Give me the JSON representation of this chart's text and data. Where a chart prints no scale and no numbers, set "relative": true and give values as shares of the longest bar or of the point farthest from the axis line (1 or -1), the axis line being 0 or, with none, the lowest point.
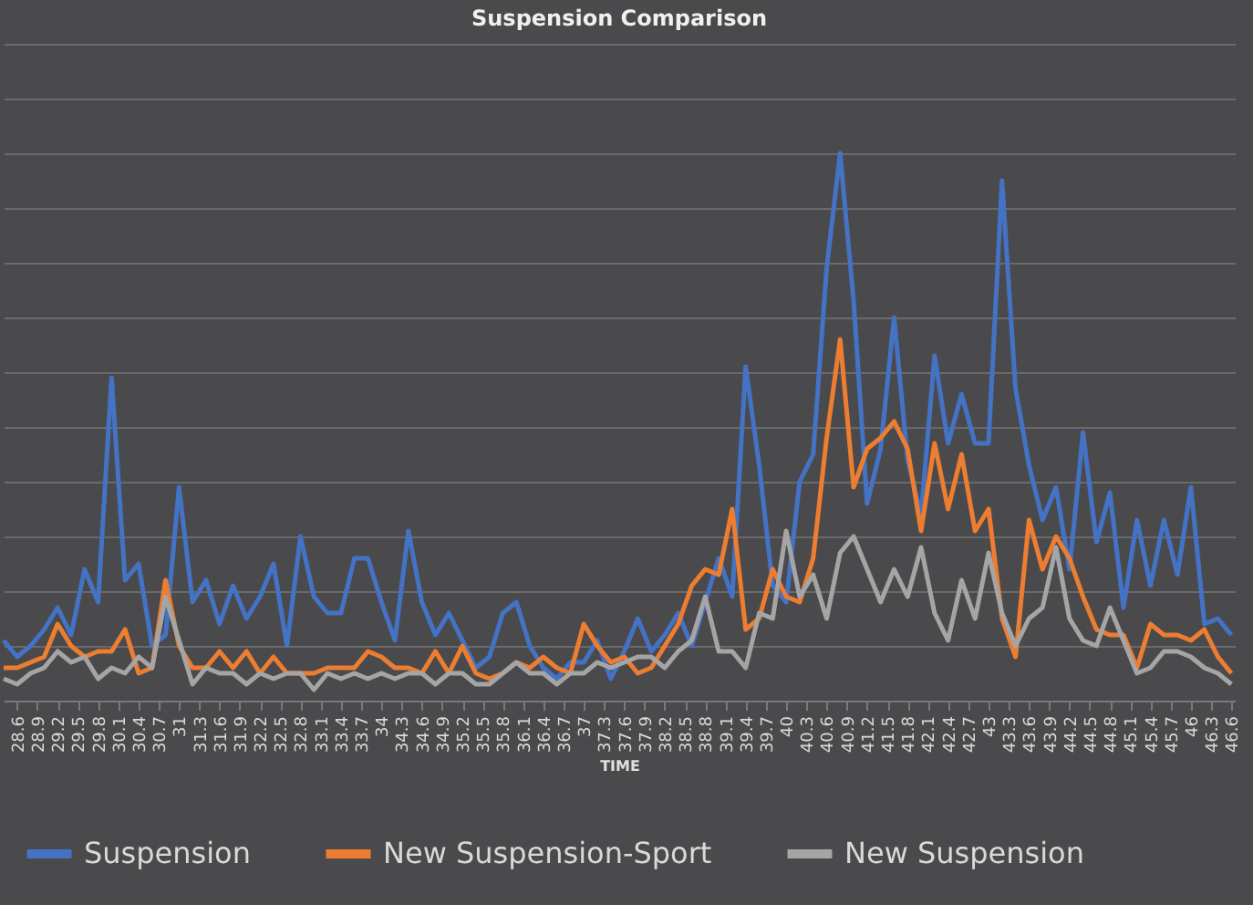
{
  "chart_data": {
    "type": "line",
    "title": "Suspension Comparison",
    "xlabel": "TIME",
    "relative": true,
    "grid": "y",
    "legend": "bottom",
    "line_style": "solid",
    "marker": "none",
    "xlim": [
      28.4,
      46.65
    ],
    "xticks": [
      28.6,
      28.9,
      29.2,
      29.5,
      29.8,
      30.1,
      30.4,
      30.7,
      31,
      31.3,
      31.6,
      31.9,
      32.2,
      32.5,
      32.8,
      33.1,
      33.4,
      33.7,
      34,
      34.3,
      34.6,
      34.9,
      35.2,
      35.5,
      35.8,
      36.1,
      36.4,
      36.7,
      37,
      37.3,
      37.6,
      37.9,
      38.2,
      38.5,
      38.8,
      39.1,
      39.4,
      39.7,
      40,
      40.3,
      40.6,
      40.9,
      41.2,
      41.5,
      41.8,
      42.1,
      42.4,
      42.7,
      43,
      43.3,
      43.6,
      43.9,
      44.2,
      44.5,
      44.8,
      45.1,
      45.4,
      45.7,
      46,
      46.3,
      46.6
    ],
    "x": [
      28.4,
      28.6,
      28.8,
      29.0,
      29.2,
      29.4,
      29.6,
      29.8,
      30.0,
      30.2,
      30.4,
      30.6,
      30.8,
      31.0,
      31.2,
      31.4,
      31.6,
      31.8,
      32.0,
      32.2,
      32.4,
      32.6,
      32.8,
      33.0,
      33.2,
      33.4,
      33.6,
      33.8,
      34.0,
      34.2,
      34.4,
      34.6,
      34.8,
      35.0,
      35.2,
      35.4,
      35.6,
      35.8,
      36.0,
      36.2,
      36.4,
      36.6,
      36.8,
      37.0,
      37.2,
      37.4,
      37.6,
      37.8,
      38.0,
      38.2,
      38.4,
      38.6,
      38.8,
      39.0,
      39.2,
      39.4,
      39.6,
      39.8,
      40.0,
      40.2,
      40.4,
      40.6,
      40.8,
      41.0,
      41.2,
      41.4,
      41.6,
      41.8,
      42.0,
      42.2,
      42.4,
      42.6,
      42.8,
      43.0,
      43.2,
      43.4,
      43.6,
      43.8,
      44.0,
      44.2,
      44.4,
      44.6,
      44.8,
      45.0,
      45.2,
      45.4,
      45.6,
      45.8,
      46.0,
      46.2,
      46.4,
      46.6
    ],
    "series": [
      {
        "name": "Suspension",
        "color": "#4472c4",
        "values": [
          0.11,
          0.08,
          0.1,
          0.13,
          0.17,
          0.12,
          0.24,
          0.18,
          0.59,
          0.22,
          0.25,
          0.1,
          0.12,
          0.39,
          0.18,
          0.22,
          0.14,
          0.21,
          0.15,
          0.19,
          0.25,
          0.1,
          0.3,
          0.19,
          0.16,
          0.16,
          0.26,
          0.26,
          0.18,
          0.11,
          0.31,
          0.18,
          0.12,
          0.16,
          0.11,
          0.06,
          0.08,
          0.16,
          0.18,
          0.1,
          0.06,
          0.04,
          0.07,
          0.07,
          0.11,
          0.04,
          0.09,
          0.15,
          0.09,
          0.12,
          0.16,
          0.1,
          0.18,
          0.26,
          0.19,
          0.61,
          0.43,
          0.21,
          0.18,
          0.4,
          0.45,
          0.79,
          1,
          0.73,
          0.36,
          0.46,
          0.7,
          0.44,
          0.34,
          0.63,
          0.47,
          0.56,
          0.47,
          0.47,
          0.95,
          0.57,
          0.43,
          0.33,
          0.39,
          0.24,
          0.49,
          0.29,
          0.38,
          0.17,
          0.33,
          0.21,
          0.33,
          0.23,
          0.39,
          0.14,
          0.15,
          0.12
        ]
      },
      {
        "name": "New Suspension-Sport",
        "color": "#ed7d31",
        "values": [
          0.06,
          0.06,
          0.07,
          0.08,
          0.14,
          0.1,
          0.08,
          0.09,
          0.09,
          0.13,
          0.05,
          0.06,
          0.22,
          0.1,
          0.06,
          0.06,
          0.09,
          0.06,
          0.09,
          0.05,
          0.08,
          0.05,
          0.05,
          0.05,
          0.06,
          0.06,
          0.06,
          0.09,
          0.08,
          0.06,
          0.06,
          0.05,
          0.09,
          0.05,
          0.1,
          0.05,
          0.04,
          0.05,
          0.07,
          0.06,
          0.08,
          0.06,
          0.05,
          0.14,
          0.1,
          0.07,
          0.08,
          0.05,
          0.06,
          0.1,
          0.14,
          0.21,
          0.24,
          0.23,
          0.35,
          0.13,
          0.15,
          0.24,
          0.19,
          0.18,
          0.26,
          0.48,
          0.66,
          0.39,
          0.46,
          0.48,
          0.51,
          0.46,
          0.31,
          0.47,
          0.35,
          0.45,
          0.31,
          0.35,
          0.15,
          0.08,
          0.33,
          0.24,
          0.3,
          0.26,
          0.19,
          0.13,
          0.12,
          0.12,
          0.06,
          0.14,
          0.12,
          0.12,
          0.11,
          0.13,
          0.08,
          0.05
        ]
      },
      {
        "name": "New Suspension",
        "color": "#a5a5a5",
        "values": [
          0.04,
          0.03,
          0.05,
          0.06,
          0.09,
          0.07,
          0.08,
          0.04,
          0.06,
          0.05,
          0.08,
          0.06,
          0.19,
          0.11,
          0.03,
          0.06,
          0.05,
          0.05,
          0.03,
          0.05,
          0.04,
          0.05,
          0.05,
          0.02,
          0.05,
          0.04,
          0.05,
          0.04,
          0.05,
          0.04,
          0.05,
          0.05,
          0.03,
          0.05,
          0.05,
          0.03,
          0.03,
          0.05,
          0.07,
          0.05,
          0.05,
          0.03,
          0.05,
          0.05,
          0.07,
          0.06,
          0.07,
          0.08,
          0.08,
          0.06,
          0.09,
          0.11,
          0.19,
          0.09,
          0.09,
          0.06,
          0.16,
          0.15,
          0.31,
          0.19,
          0.23,
          0.15,
          0.27,
          0.3,
          0.24,
          0.18,
          0.24,
          0.19,
          0.28,
          0.16,
          0.11,
          0.22,
          0.15,
          0.27,
          0.16,
          0.1,
          0.15,
          0.17,
          0.28,
          0.15,
          0.11,
          0.1,
          0.17,
          0.11,
          0.05,
          0.06,
          0.09,
          0.09,
          0.08,
          0.06,
          0.05,
          0.03
        ]
      }
    ]
  }
}
